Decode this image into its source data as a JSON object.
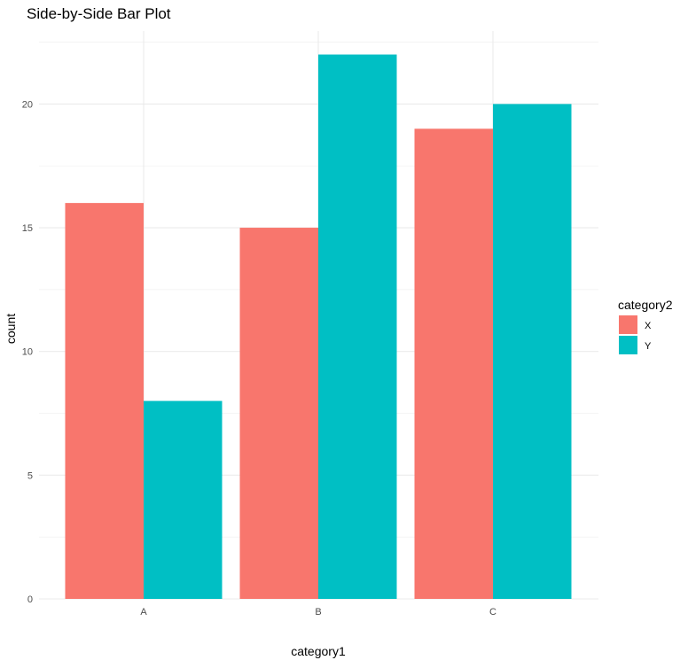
{
  "chart_data": {
    "type": "bar",
    "title": "Side-by-Side Bar Plot",
    "xlabel": "category1",
    "ylabel": "count",
    "categories": [
      "A",
      "B",
      "C"
    ],
    "series": [
      {
        "name": "X",
        "values": [
          16,
          15,
          19
        ],
        "color": "#F8766D"
      },
      {
        "name": "Y",
        "values": [
          8,
          22,
          20
        ],
        "color": "#00BFC4"
      }
    ],
    "ylim": [
      0,
      23
    ],
    "y_ticks": [
      0,
      5,
      10,
      15,
      20
    ],
    "y_minor_ticks": [
      2.5,
      7.5,
      12.5,
      17.5,
      22.5
    ],
    "grid": true,
    "legend": {
      "title": "category2",
      "position": "right"
    }
  }
}
